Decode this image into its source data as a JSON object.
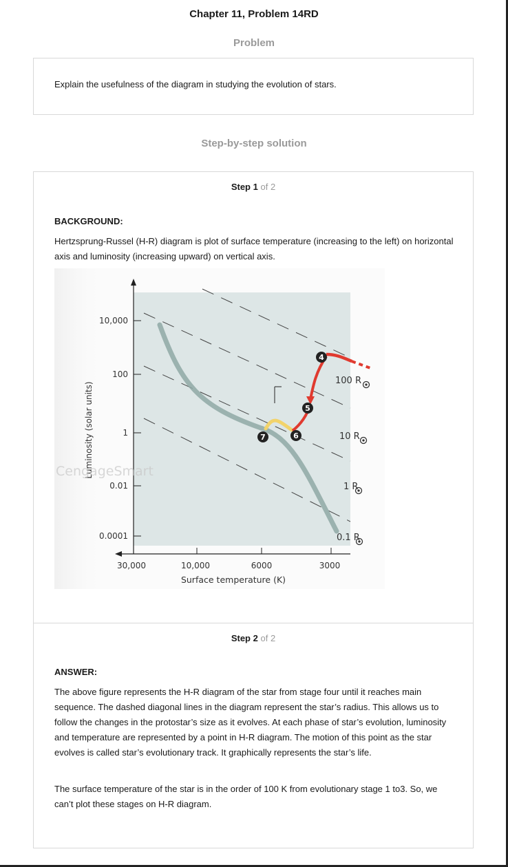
{
  "title": "Chapter 11, Problem 14RD",
  "problem": {
    "heading": "Problem",
    "text": "Explain the usefulness of the diagram in studying the evolution of stars."
  },
  "solution": {
    "heading": "Step-by-step solution",
    "step1": {
      "word": "Step",
      "num": "1",
      "of": "of 2",
      "label": "BACKGROUND:",
      "text": "Hertzsprung-Russel (H-R) diagram is plot of surface temperature (increasing to the left) on horizontal axis and luminosity (increasing upward) on vertical axis."
    },
    "step2": {
      "word": "Step",
      "num": "2",
      "of": "of 2",
      "label": "ANSWER:",
      "para1": "The above figure represents the H-R diagram of the star from stage four until it reaches main sequence. The dashed diagonal lines in the diagram represent the star’s radius. This allows us to follow the changes in the protostar’s size as it evolves. At each phase of star’s evolution, luminosity and temperature are represented by a point in H-R diagram. The motion of this point as the star evolves is called star’s evolutionary track. It graphically represents the star’s life.",
      "para2": "The surface temperature of the star is in the order of 100 K from evolutionary stage 1 to3. So, we can’t plot these stages on H-R diagram."
    }
  },
  "diagram": {
    "ylabel": "Luminosity (solar units)",
    "xlabel": "Surface temperature (K)",
    "y_ticks": [
      "10,000",
      "100",
      "1",
      "0.01",
      "0.0001"
    ],
    "x_ticks": [
      "30,000",
      "10,000",
      "6000",
      "3000"
    ],
    "radius_labels": [
      "100 R",
      "10 R",
      "1 R",
      "0.1 R"
    ],
    "stage_labels": [
      "4",
      "5",
      "6",
      "7"
    ],
    "watermark": "CengageSmart",
    "colors": {
      "plot_bg": "#dde6e6",
      "track_red": "#e03a2f",
      "track_yellow": "#f2d36b",
      "main_sequence": "#8fa8a4"
    }
  }
}
